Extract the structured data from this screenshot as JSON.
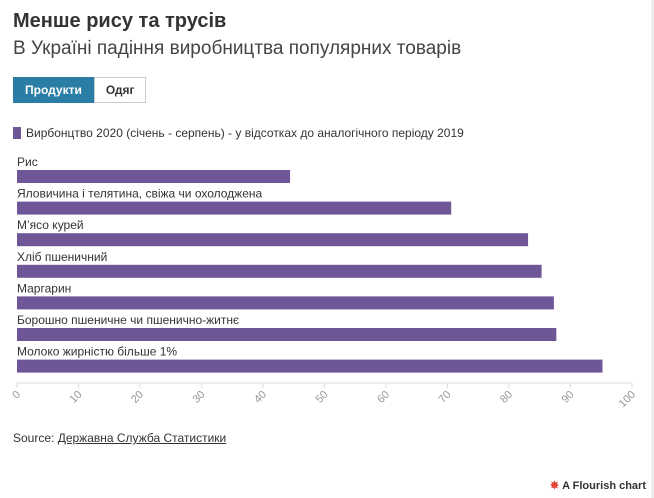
{
  "header": {
    "title": "Менше рису та трусів",
    "subtitle": "В Україні падіння виробництва популярних товарів"
  },
  "tabs": [
    {
      "label": "Продукти",
      "active": true
    },
    {
      "label": "Одяг",
      "active": false
    }
  ],
  "colors": {
    "bar": "#6f5797",
    "active_tab": "#2a7ea6"
  },
  "chart_data": {
    "type": "bar",
    "orientation": "horizontal",
    "legend": [
      "Вирбонцтво 2020 (січень - серпень) - у відсотках до аналогічного періоду 2019"
    ],
    "legend_display": "Вирбонцтво 2020 (січень - серпень) - у відсотках до аналогічного періоду 2019",
    "categories": [
      "Рис",
      "Яловичина і телятина, свіжа чи охолоджена",
      "М’ясо курей",
      "Хліб пшеничний",
      "Маргарин",
      "Борошно пшеничне чи пшенично-житнє",
      "Молоко жирністю більше 1%"
    ],
    "values": [
      44.4,
      70.6,
      83.1,
      85.3,
      87.3,
      87.7,
      95.2
    ],
    "xlim": [
      0,
      100
    ],
    "xticks": [
      "0",
      "10",
      "20",
      "30",
      "40",
      "50",
      "60",
      "70",
      "80",
      "90",
      "100"
    ]
  },
  "footer": {
    "source_prefix": "Source: ",
    "source_link": "Державна Служба Статистики",
    "flourish": "A Flourish chart"
  }
}
